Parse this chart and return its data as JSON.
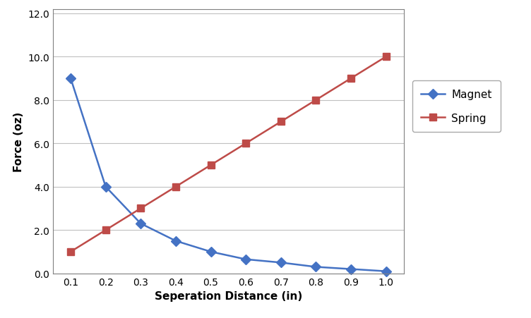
{
  "x": [
    0.1,
    0.2,
    0.3,
    0.4,
    0.5,
    0.6,
    0.7,
    0.8,
    0.9,
    1.0
  ],
  "magnet_y": [
    9.0,
    4.0,
    2.3,
    1.5,
    1.0,
    0.65,
    0.5,
    0.3,
    0.2,
    0.1
  ],
  "spring_y": [
    1.0,
    2.0,
    3.0,
    4.0,
    5.0,
    6.0,
    7.0,
    8.0,
    9.0,
    10.0
  ],
  "magnet_color": "#4472C4",
  "spring_color": "#BE4B48",
  "magnet_label": "Magnet",
  "spring_label": "Spring",
  "xlabel": "Seperation Distance (in)",
  "ylabel": "Force (oz)",
  "xlim": [
    0.05,
    1.05
  ],
  "ylim": [
    0.0,
    12.2
  ],
  "xticks": [
    0.1,
    0.2,
    0.3,
    0.4,
    0.5,
    0.6,
    0.7,
    0.8,
    0.9,
    1.0
  ],
  "yticks": [
    0.0,
    2.0,
    4.0,
    6.0,
    8.0,
    10.0,
    12.0
  ],
  "background_color": "#ffffff",
  "plot_bg_color": "#ffffff",
  "grid_color": "#c0c0c0",
  "xlabel_fontsize": 11,
  "ylabel_fontsize": 11,
  "tick_fontsize": 10,
  "legend_fontsize": 11,
  "line_width": 1.8,
  "marker_size": 7
}
